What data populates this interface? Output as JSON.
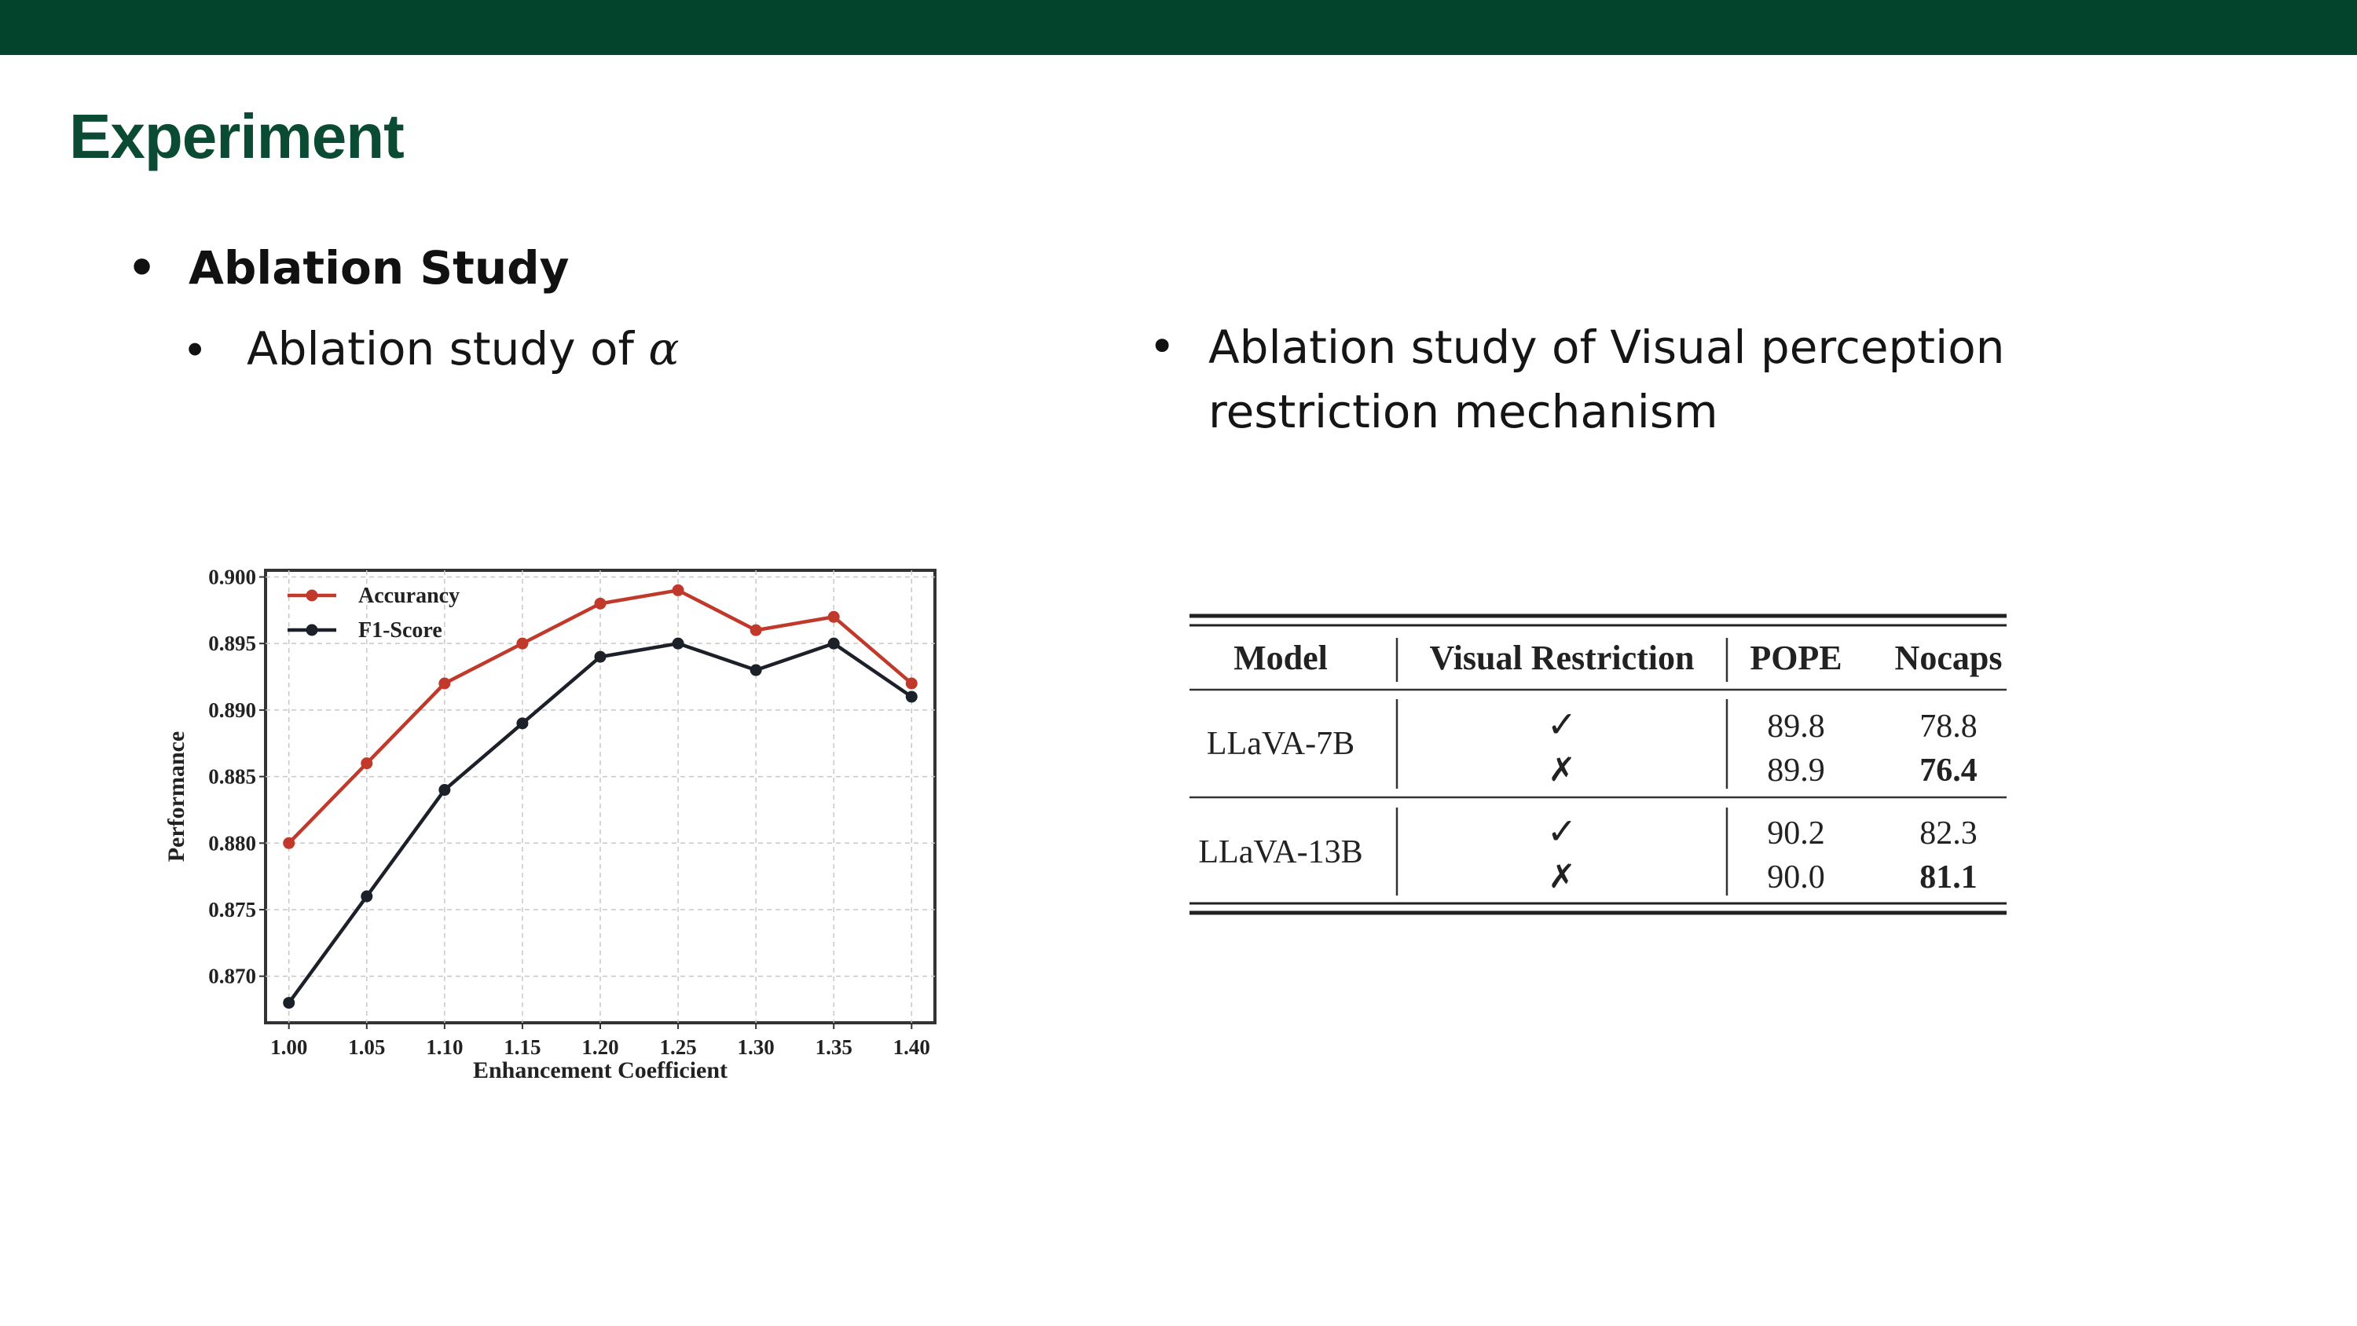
{
  "slide": {
    "title": "Experiment",
    "bullet_main": "Ablation Study",
    "bullet_left": "Ablation study of",
    "bullet_left_symbol": "α",
    "bullet_right_line1": "Ablation study of Visual perception",
    "bullet_right_line2": "restriction mechanism",
    "colors": {
      "header_bar": "#03452c",
      "title": "#0b4a33"
    }
  },
  "chart_data": {
    "type": "line",
    "x": [
      1.0,
      1.05,
      1.1,
      1.15,
      1.2,
      1.25,
      1.3,
      1.35,
      1.4
    ],
    "x_tick_labels": [
      "1.00",
      "1.05",
      "1.10",
      "1.15",
      "1.20",
      "1.25",
      "1.30",
      "1.35",
      "1.40"
    ],
    "y_tick_labels": [
      "0.900",
      "0.895",
      "0.890",
      "0.885",
      "0.880",
      "0.875",
      "0.870"
    ],
    "y_ticks": [
      0.9,
      0.895,
      0.89,
      0.885,
      0.88,
      0.875,
      0.87
    ],
    "series": [
      {
        "name": "Accurancy",
        "color": "#c0392b",
        "values": [
          0.88,
          0.886,
          0.892,
          0.895,
          0.898,
          0.899,
          0.896,
          0.897,
          0.892
        ]
      },
      {
        "name": "F1-Score",
        "color": "#1b2029",
        "values": [
          0.868,
          0.876,
          0.884,
          0.889,
          0.894,
          0.895,
          0.893,
          0.895,
          0.891
        ]
      }
    ],
    "xlabel": "Enhancement Coefficient",
    "ylabel": "Performance",
    "xlim": [
      0.985,
      1.415
    ],
    "ylim": [
      0.8665,
      0.9005
    ],
    "grid": true,
    "legend": "top-left"
  },
  "table": {
    "headers": [
      "Model",
      "Visual Restriction",
      "POPE",
      "Nocaps"
    ],
    "groups": [
      {
        "model": "LLaVA-7B",
        "rows": [
          {
            "restriction": "✓",
            "pope": "89.8",
            "nocaps": "78.8",
            "bold": false
          },
          {
            "restriction": "✗",
            "pope": "89.9",
            "nocaps": "76.4",
            "bold": true
          }
        ]
      },
      {
        "model": "LLaVA-13B",
        "rows": [
          {
            "restriction": "✓",
            "pope": "90.2",
            "nocaps": "82.3",
            "bold": false
          },
          {
            "restriction": "✗",
            "pope": "90.0",
            "nocaps": "81.1",
            "bold": true
          }
        ]
      }
    ]
  }
}
